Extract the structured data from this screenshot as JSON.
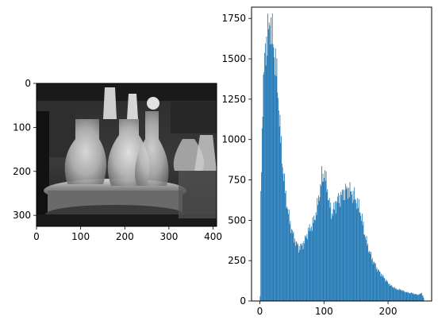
{
  "chart_data": [
    {
      "type": "image",
      "description_of_content": "grayscale photograph",
      "x_ticks": [
        0,
        100,
        200,
        300,
        400
      ],
      "y_ticks": [
        0,
        100,
        200,
        300
      ],
      "xlim": [
        0,
        408
      ],
      "ylim": [
        325,
        0
      ]
    },
    {
      "type": "bar",
      "x_ticks": [
        0,
        100,
        200
      ],
      "y_ticks": [
        0,
        250,
        500,
        750,
        1000,
        1250,
        1500,
        1750
      ],
      "xlim": [
        -13,
        268
      ],
      "ylim": [
        0,
        1820
      ],
      "bar_color": "#1f77b4",
      "x": [
        0,
        4,
        8,
        12,
        16,
        20,
        24,
        28,
        32,
        36,
        40,
        44,
        48,
        52,
        56,
        60,
        64,
        68,
        72,
        76,
        80,
        84,
        88,
        92,
        96,
        100,
        104,
        108,
        112,
        116,
        120,
        124,
        128,
        132,
        136,
        140,
        144,
        148,
        152,
        156,
        160,
        164,
        168,
        172,
        176,
        180,
        184,
        188,
        192,
        196,
        200,
        204,
        208,
        212,
        216,
        220,
        224,
        228,
        232,
        236,
        240,
        244,
        248,
        252,
        255
      ],
      "values": [
        450,
        1250,
        1560,
        1650,
        1730,
        1600,
        1480,
        1280,
        1000,
        800,
        650,
        540,
        460,
        400,
        360,
        330,
        340,
        360,
        400,
        440,
        460,
        500,
        560,
        650,
        760,
        790,
        720,
        600,
        540,
        580,
        620,
        640,
        660,
        680,
        690,
        680,
        660,
        640,
        600,
        560,
        480,
        400,
        340,
        290,
        250,
        220,
        190,
        170,
        150,
        130,
        110,
        95,
        85,
        75,
        70,
        70,
        60,
        55,
        50,
        50,
        45,
        40,
        40,
        50,
        20
      ]
    }
  ]
}
